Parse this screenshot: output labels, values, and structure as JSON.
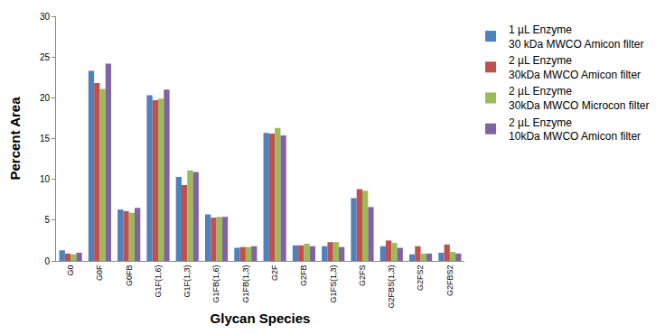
{
  "chart_data": {
    "type": "bar",
    "x_label": "Glycan Species",
    "y_label": "Percent Area",
    "categories": [
      "G0",
      "G0F",
      "G0FB",
      "G1F(1,6)",
      "G1F(1,3)",
      "G1FB(1,6)",
      "G1FB(1,3)",
      "G2F",
      "G2FB",
      "G1FS(1,3)",
      "G2FS",
      "G2FBS(1,3)",
      "G2FS2",
      "G2FBS2"
    ],
    "series": [
      {
        "name": "1 µL Enzyme\n30 kDa MWCO Amicon filter",
        "color": "#4f81bd",
        "values": [
          1.3,
          23.3,
          6.3,
          20.3,
          10.3,
          5.7,
          1.6,
          15.7,
          1.9,
          1.8,
          7.7,
          1.8,
          0.8,
          1.0
        ]
      },
      {
        "name": "2 µL Enzyme\n30kDa MWCO Amicon filter",
        "color": "#c0504d",
        "values": [
          0.9,
          21.8,
          6.1,
          19.7,
          9.3,
          5.3,
          1.7,
          15.6,
          1.9,
          2.3,
          8.8,
          2.5,
          1.8,
          2.0
        ]
      },
      {
        "name": "2 µL Enzyme\n30kDa MWCO Microcon filter",
        "color": "#9bbb59",
        "values": [
          0.8,
          21.1,
          5.9,
          19.9,
          11.1,
          5.4,
          1.7,
          16.3,
          2.1,
          2.3,
          8.6,
          2.2,
          0.9,
          1.1
        ]
      },
      {
        "name": "2 µL Enzyme\n10kDa MWCO Amicon filter",
        "color": "#8064a2",
        "values": [
          1.0,
          24.2,
          6.5,
          21.0,
          10.9,
          5.4,
          1.8,
          15.4,
          1.8,
          1.7,
          6.6,
          1.6,
          0.9,
          0.9
        ]
      }
    ],
    "ylim": [
      0,
      30
    ],
    "yticks": [
      0,
      5,
      10,
      15,
      20,
      25,
      30
    ],
    "grid": false,
    "legend": "right"
  }
}
